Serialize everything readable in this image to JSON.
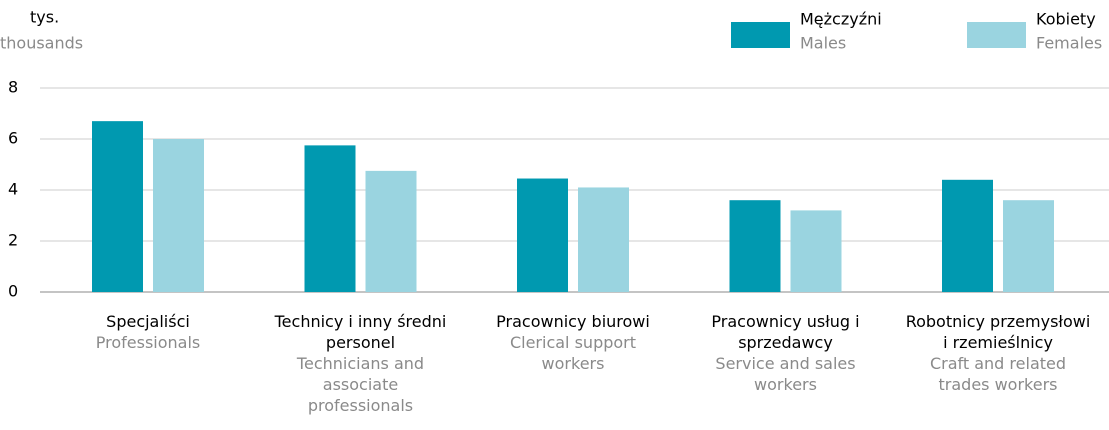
{
  "chart_data": {
    "type": "bar",
    "y_label": "tys.",
    "y_label_en": "thousands",
    "categories": [
      "Specjaliści",
      "Technicy i inny średni personel",
      "Pracownicy biurowi",
      "Pracownicy usług i sprzedawcy",
      "Robotnicy przemysłowi i rzemieślnicy"
    ],
    "categories_en": [
      "Professionals",
      "Technicians and associate professionals",
      "Clerical support workers",
      "Service and sales workers",
      "Craft and related trades workers"
    ],
    "series": [
      {
        "name": "Mężczyźni",
        "name_en": "Males",
        "color": "#0099b0",
        "values": [
          6.7,
          5.75,
          4.45,
          3.6,
          4.4
        ]
      },
      {
        "name": "Kobiety",
        "name_en": "Females",
        "color": "#9ad4e0",
        "values": [
          6.0,
          4.75,
          4.1,
          3.2,
          3.6
        ]
      }
    ],
    "ylim": [
      0,
      8
    ],
    "yticks": [
      0,
      2,
      4,
      6,
      8
    ],
    "grid": true,
    "legend": "top-right"
  }
}
